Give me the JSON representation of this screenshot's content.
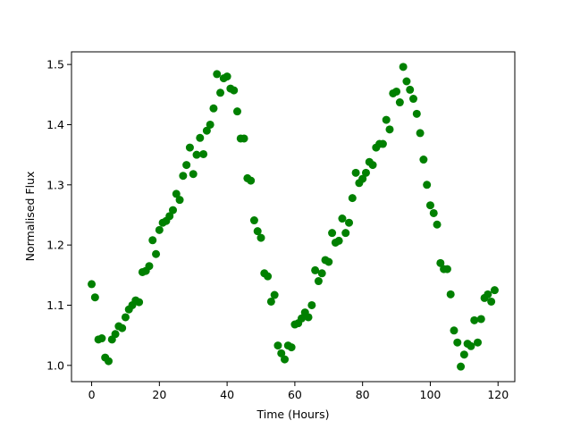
{
  "chart_data": {
    "type": "scatter",
    "xlabel": "Time (Hours)",
    "ylabel": "Normalised Flux",
    "color": "#008000",
    "grid": false,
    "x": [
      0,
      1,
      2,
      3,
      4,
      5,
      6,
      7,
      8,
      9,
      10,
      11,
      12,
      13,
      14,
      15,
      16,
      17,
      18,
      19,
      20,
      21,
      22,
      23,
      24,
      25,
      26,
      27,
      28,
      29,
      30,
      31,
      32,
      33,
      34,
      35,
      36,
      37,
      38,
      39,
      40,
      41,
      42,
      43,
      44,
      45,
      46,
      47,
      48,
      49,
      50,
      51,
      52,
      53,
      54,
      55,
      56,
      57,
      58,
      59,
      60,
      61,
      62,
      63,
      64,
      65,
      66,
      67,
      68,
      69,
      70,
      71,
      72,
      73,
      74,
      75,
      76,
      77,
      78,
      79,
      80,
      81,
      82,
      83,
      84,
      85,
      86,
      87,
      88,
      89,
      90,
      91,
      92,
      93,
      94,
      95,
      96,
      97,
      98,
      99,
      100,
      101,
      102,
      103,
      104,
      105,
      106,
      107,
      108,
      109,
      110,
      111,
      112,
      113,
      114,
      115,
      116,
      117,
      118,
      119
    ],
    "values": [
      1.135,
      1.113,
      1.043,
      1.045,
      1.013,
      1.007,
      1.043,
      1.052,
      1.065,
      1.062,
      1.08,
      1.093,
      1.1,
      1.108,
      1.105,
      1.155,
      1.157,
      1.165,
      1.208,
      1.185,
      1.225,
      1.237,
      1.24,
      1.248,
      1.258,
      1.285,
      1.275,
      1.315,
      1.333,
      1.362,
      1.318,
      1.35,
      1.378,
      1.351,
      1.39,
      1.4,
      1.427,
      1.484,
      1.453,
      1.477,
      1.48,
      1.46,
      1.457,
      1.422,
      1.377,
      1.377,
      1.311,
      1.307,
      1.241,
      1.223,
      1.212,
      1.153,
      1.148,
      1.106,
      1.117,
      1.033,
      1.02,
      1.01,
      1.033,
      1.03,
      1.068,
      1.07,
      1.078,
      1.088,
      1.08,
      1.1,
      1.158,
      1.14,
      1.153,
      1.175,
      1.172,
      1.22,
      1.204,
      1.207,
      1.244,
      1.22,
      1.237,
      1.278,
      1.32,
      1.303,
      1.31,
      1.32,
      1.338,
      1.333,
      1.362,
      1.368,
      1.368,
      1.408,
      1.392,
      1.452,
      1.455,
      1.437,
      1.496,
      1.472,
      1.458,
      1.443,
      1.418,
      1.386,
      1.342,
      1.3,
      1.266,
      1.253,
      1.234,
      1.17,
      1.16,
      1.16,
      1.118,
      1.058,
      1.038,
      0.998,
      1.018,
      1.036,
      1.032,
      1.075,
      1.038,
      1.077,
      1.112,
      1.118,
      1.106,
      1.125
    ],
    "xlim": [
      -5.95,
      124.95
    ],
    "xticks": [
      0,
      20,
      40,
      60,
      80,
      100,
      120
    ],
    "ylim": [
      0.973,
      1.521
    ],
    "yticks": [
      {
        "value": 1.0,
        "label": "1.0"
      },
      1.1,
      1.2,
      1.3,
      1.4,
      1.5
    ]
  }
}
